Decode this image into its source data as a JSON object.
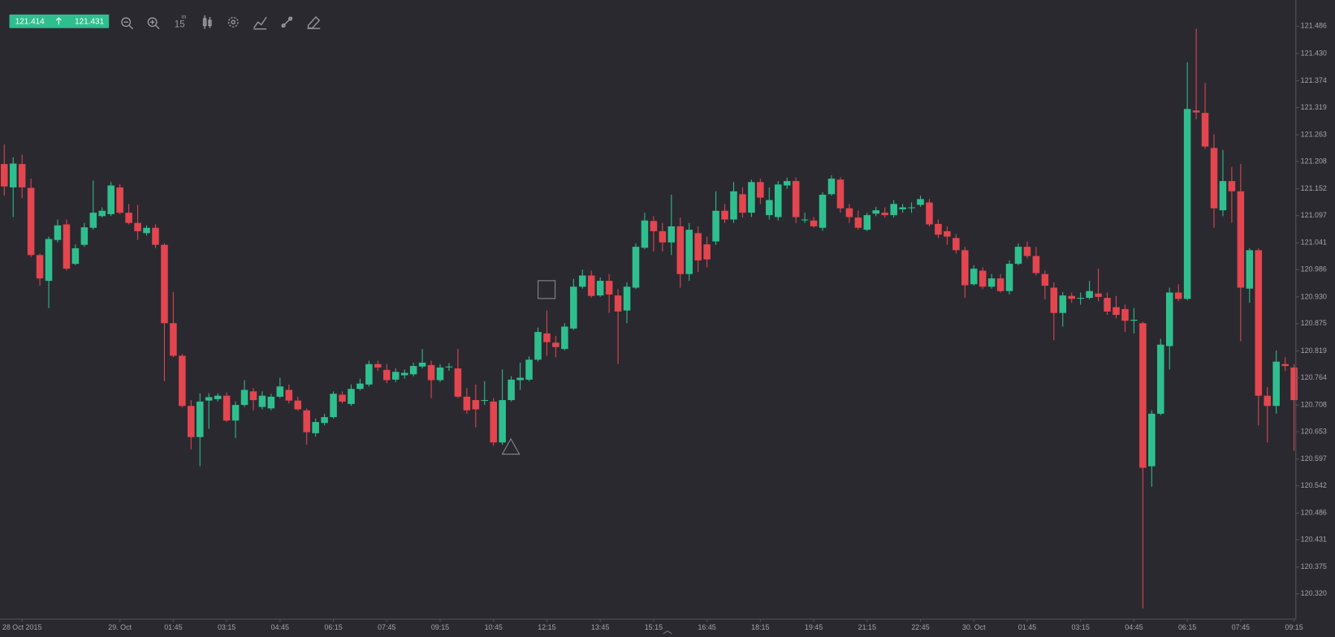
{
  "quote": {
    "bid": 121.414,
    "ask": 121.431
  },
  "toolbar": {
    "interval": "15",
    "unit": "m"
  },
  "chart_data": {
    "type": "candlestick",
    "colors": {
      "up": "#2fbf8e",
      "down": "#e3464f"
    },
    "xlim": [
      -0.48,
      145.2
    ],
    "ylim": [
      120.268,
      121.54
    ],
    "yticks": [
      121.486,
      {
        "value": 121.43,
        "label": "121.430"
      },
      121.374,
      121.319,
      121.263,
      121.208,
      121.152,
      121.097,
      121.041,
      120.986,
      {
        "value": 120.93,
        "label": "120.930"
      },
      120.875,
      120.819,
      120.764,
      120.708,
      120.653,
      120.597,
      120.542,
      120.486,
      120.431,
      120.375,
      {
        "value": 120.32,
        "label": "120.320"
      }
    ],
    "xticks": [
      {
        "value": 2,
        "label": "28 Oct 2015"
      },
      {
        "value": 13,
        "label": "29. Oct"
      },
      {
        "value": 19,
        "label": "01:45"
      },
      {
        "value": 25,
        "label": "03:15"
      },
      {
        "value": 31,
        "label": "04:45"
      },
      {
        "value": 37,
        "label": "06:15"
      },
      {
        "value": 43,
        "label": "07:45"
      },
      {
        "value": 49,
        "label": "09:15"
      },
      {
        "value": 55,
        "label": "10:45"
      },
      {
        "value": 61,
        "label": "12:15"
      },
      {
        "value": 67,
        "label": "13:45"
      },
      {
        "value": 73,
        "label": "15:15"
      },
      {
        "value": 79,
        "label": "16:45"
      },
      {
        "value": 85,
        "label": "18:15"
      },
      {
        "value": 91,
        "label": "19:45"
      },
      {
        "value": 97,
        "label": "21:15"
      },
      {
        "value": 103,
        "label": "22:45"
      },
      {
        "value": 109,
        "label": "30. Oct"
      },
      {
        "value": 115,
        "label": "01:45"
      },
      {
        "value": 121,
        "label": "03:15"
      },
      {
        "value": 127,
        "label": "04:45"
      },
      {
        "value": 133,
        "label": "06:15"
      },
      {
        "value": 139,
        "label": "07:45"
      },
      {
        "value": 145,
        "label": "09:15"
      }
    ],
    "open": [
      121.203,
      121.155,
      121.203,
      121.154,
      121.016,
      120.963,
      121.047,
      121.079,
      120.998,
      121.037,
      121.072,
      121.096,
      121.1,
      121.155,
      121.103,
      121.082,
      121.061,
      121.072,
      121.037,
      120.876,
      120.809,
      120.706,
      120.642,
      120.717,
      120.72,
      120.727,
      120.676,
      120.708,
      120.736,
      120.704,
      120.701,
      120.725,
      120.739,
      120.717,
      120.697,
      120.65,
      120.671,
      120.683,
      120.729,
      120.71,
      120.741,
      120.75,
      120.792,
      120.78,
      120.76,
      120.769,
      120.771,
      120.787,
      120.79,
      120.759,
      120.787,
      120.783,
      120.725,
      120.718,
      120.717,
      120.715,
      120.631,
      120.718,
      120.759,
      120.76,
      120.801,
      120.855,
      120.836,
      120.823,
      120.865,
      120.951,
      120.974,
      120.933,
      120.963,
      120.933,
      120.902,
      120.949,
      121.031,
      121.086,
      121.065,
      121.042,
      121.075,
      120.977,
      121.061,
      121.038,
      121.044,
      121.107,
      121.089,
      121.141,
      121.103,
      121.166,
      121.098,
      121.094,
      121.159,
      121.168,
      121.089,
      121.087,
      121.072,
      121.141,
      121.171,
      121.112,
      121.093,
      121.068,
      121.101,
      121.103,
      121.098,
      121.11,
      121.114,
      121.119,
      121.124,
      121.08,
      121.065,
      121.051,
      121.026,
      120.956,
      120.984,
      120.951,
      120.968,
      120.942,
      120.998,
      121.033,
      121.014,
      120.977,
      120.949,
      120.897,
      120.932,
      120.928,
      120.928,
      120.937,
      120.928,
      120.909,
      120.905,
      120.881,
      120.876,
      120.582,
      120.69,
      120.829,
      120.939,
      120.926,
      121.313,
      121.308,
      121.236,
      121.108,
      121.168,
      121.147,
      120.947,
      121.026,
      120.727,
      120.706,
      120.792,
      120.785
    ],
    "high": [
      121.243,
      121.217,
      121.222,
      121.173,
      121.019,
      121.054,
      121.089,
      121.089,
      121.038,
      121.082,
      121.169,
      121.114,
      121.166,
      121.162,
      121.121,
      121.119,
      121.077,
      121.079,
      121.04,
      120.94,
      120.813,
      120.718,
      120.732,
      120.732,
      120.732,
      120.734,
      120.715,
      120.759,
      120.743,
      120.736,
      120.731,
      120.764,
      120.75,
      120.725,
      120.701,
      120.68,
      120.69,
      120.736,
      120.736,
      120.75,
      120.762,
      120.799,
      120.799,
      120.792,
      120.783,
      120.781,
      120.795,
      120.823,
      120.799,
      120.792,
      120.794,
      120.823,
      120.743,
      120.75,
      120.757,
      120.722,
      120.781,
      120.767,
      120.795,
      120.808,
      120.867,
      120.902,
      120.85,
      120.876,
      120.967,
      120.986,
      120.984,
      120.97,
      120.977,
      120.946,
      120.96,
      121.04,
      121.103,
      121.096,
      121.082,
      121.14,
      121.093,
      121.082,
      121.075,
      121.054,
      121.147,
      121.121,
      121.166,
      121.155,
      121.171,
      121.173,
      121.155,
      121.168,
      121.175,
      121.175,
      121.103,
      121.094,
      121.145,
      121.18,
      121.176,
      121.121,
      121.107,
      121.103,
      121.115,
      121.114,
      121.129,
      121.121,
      121.124,
      121.138,
      121.131,
      121.089,
      121.075,
      121.059,
      121.033,
      120.995,
      120.991,
      120.977,
      120.977,
      121.005,
      121.04,
      121.044,
      121.033,
      120.984,
      120.96,
      120.94,
      120.939,
      120.939,
      120.963,
      120.988,
      120.939,
      120.932,
      120.914,
      120.907,
      120.879,
      120.697,
      120.844,
      120.949,
      120.956,
      121.412,
      121.481,
      121.37,
      121.264,
      121.232,
      121.197,
      121.203,
      121.03,
      121.03,
      120.745,
      120.82,
      120.806,
      120.792
    ],
    "low": [
      121.138,
      121.094,
      121.133,
      121.012,
      120.953,
      120.907,
      121.042,
      120.984,
      120.995,
      121.033,
      121.068,
      121.093,
      121.096,
      121.1,
      121.079,
      121.047,
      121.056,
      121.03,
      120.757,
      120.806,
      120.703,
      120.617,
      120.582,
      120.659,
      120.715,
      120.673,
      120.64,
      120.704,
      120.697,
      120.699,
      120.697,
      120.722,
      120.711,
      120.696,
      120.626,
      120.643,
      120.666,
      120.68,
      120.711,
      120.706,
      120.738,
      120.746,
      120.778,
      120.753,
      120.755,
      120.762,
      120.767,
      120.783,
      120.722,
      120.755,
      120.778,
      120.722,
      120.69,
      120.662,
      120.708,
      120.624,
      120.626,
      120.715,
      120.739,
      120.757,
      120.797,
      120.809,
      120.806,
      120.82,
      120.862,
      120.947,
      120.928,
      120.93,
      120.897,
      120.792,
      120.876,
      120.946,
      121.028,
      121.023,
      121.023,
      121.016,
      120.949,
      120.963,
      120.981,
      120.991,
      121.037,
      121.082,
      121.082,
      121.093,
      121.094,
      121.121,
      121.089,
      121.087,
      121.152,
      121.082,
      121.082,
      121.072,
      121.066,
      121.138,
      121.103,
      121.082,
      121.068,
      121.065,
      121.096,
      121.093,
      121.093,
      121.103,
      121.103,
      121.115,
      121.075,
      121.051,
      121.037,
      121.019,
      120.928,
      120.953,
      120.946,
      120.947,
      120.939,
      120.935,
      120.995,
      121.009,
      120.974,
      120.925,
      120.841,
      120.869,
      120.918,
      120.914,
      120.925,
      120.921,
      120.893,
      120.886,
      120.858,
      120.855,
      120.29,
      120.54,
      120.687,
      120.781,
      120.921,
      120.923,
      121.295,
      121.234,
      121.072,
      121.096,
      121.082,
      120.839,
      120.918,
      120.666,
      120.631,
      120.69,
      120.778,
      120.614
    ],
    "close": [
      121.157,
      121.204,
      121.155,
      121.016,
      120.968,
      121.049,
      121.077,
      120.988,
      121.03,
      121.073,
      121.103,
      121.107,
      121.159,
      121.103,
      121.082,
      121.065,
      121.072,
      121.037,
      120.876,
      120.809,
      120.706,
      120.642,
      120.715,
      120.724,
      120.727,
      120.676,
      120.708,
      120.739,
      120.718,
      120.727,
      120.725,
      120.746,
      120.717,
      120.699,
      120.652,
      120.673,
      120.683,
      120.731,
      120.715,
      120.741,
      120.752,
      120.792,
      120.785,
      120.759,
      120.776,
      120.774,
      120.788,
      120.795,
      120.759,
      120.785,
      120.787,
      120.725,
      120.697,
      120.699,
      120.718,
      120.631,
      120.718,
      120.76,
      120.764,
      120.801,
      120.858,
      120.837,
      120.827,
      120.869,
      120.951,
      120.974,
      120.932,
      120.963,
      120.935,
      120.9,
      120.951,
      121.033,
      121.087,
      121.065,
      121.042,
      121.075,
      120.977,
      121.068,
      121.005,
      121.007,
      121.107,
      121.089,
      121.147,
      121.103,
      121.166,
      121.134,
      121.129,
      121.161,
      121.168,
      121.094,
      121.089,
      121.075,
      121.14,
      121.173,
      121.112,
      121.094,
      121.072,
      121.098,
      121.108,
      121.098,
      121.121,
      121.114,
      121.114,
      121.131,
      121.079,
      121.058,
      121.054,
      121.026,
      120.954,
      120.988,
      120.951,
      120.968,
      120.942,
      120.998,
      121.033,
      121.014,
      120.979,
      120.953,
      120.897,
      120.933,
      120.926,
      120.928,
      120.942,
      120.93,
      120.9,
      120.893,
      120.881,
      120.883,
      120.579,
      120.69,
      120.832,
      120.939,
      120.926,
      121.316,
      121.309,
      121.239,
      121.112,
      121.168,
      121.147,
      120.949,
      121.026,
      120.727,
      120.706,
      120.797,
      120.788,
      120.718
    ]
  }
}
